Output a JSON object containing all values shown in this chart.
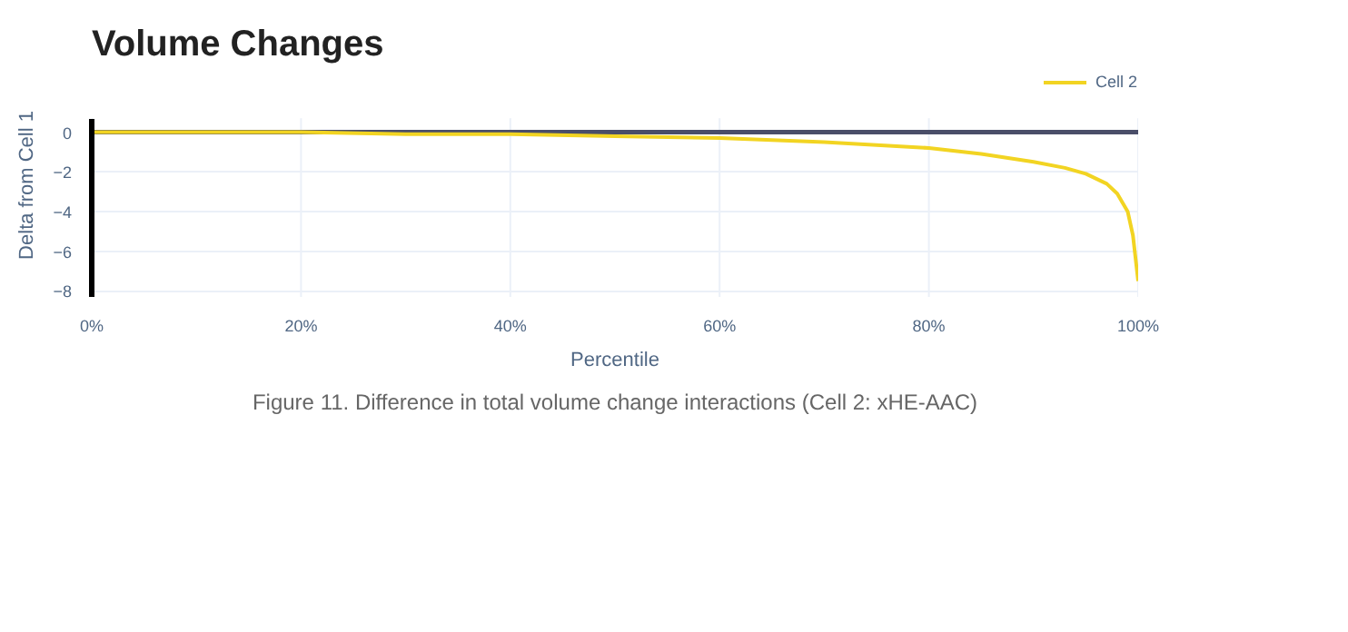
{
  "chart_data": {
    "type": "line",
    "title": "Volume Changes",
    "xlabel": "Percentile",
    "ylabel": "Delta from Cell 1",
    "annotations": [
      "Figure 11. Difference in total volume change interactions (Cell 2: xHE-AAC)"
    ],
    "x": [
      0,
      10,
      20,
      30,
      40,
      50,
      60,
      70,
      80,
      85,
      90,
      93,
      95,
      97,
      98,
      99,
      99.5,
      100
    ],
    "series": [
      {
        "name": "Cell 2",
        "color": "#f2d422",
        "values": [
          0,
          0,
          0,
          -0.1,
          -0.1,
          -0.2,
          -0.3,
          -0.5,
          -0.8,
          -1.1,
          -1.5,
          -1.8,
          -2.1,
          -2.6,
          -3.1,
          -4.0,
          -5.2,
          -7.5
        ]
      }
    ],
    "ref_lines": [
      {
        "axis": "y",
        "value": 0,
        "color": "#4a4e69"
      }
    ],
    "xlim": [
      0,
      100
    ],
    "xticks": [
      {
        "value": 0,
        "label": "0%"
      },
      {
        "value": 20,
        "label": "20%"
      },
      {
        "value": 40,
        "label": "40%"
      },
      {
        "value": 60,
        "label": "60%"
      },
      {
        "value": 80,
        "label": "80%"
      },
      {
        "value": 100,
        "label": "100%"
      }
    ],
    "ylim": [
      -8.3,
      0.7
    ],
    "yticks": [
      0,
      -2,
      -4,
      -6,
      -8
    ],
    "grid": true,
    "legend": "top right",
    "line_style": "solid",
    "marker": "none"
  }
}
